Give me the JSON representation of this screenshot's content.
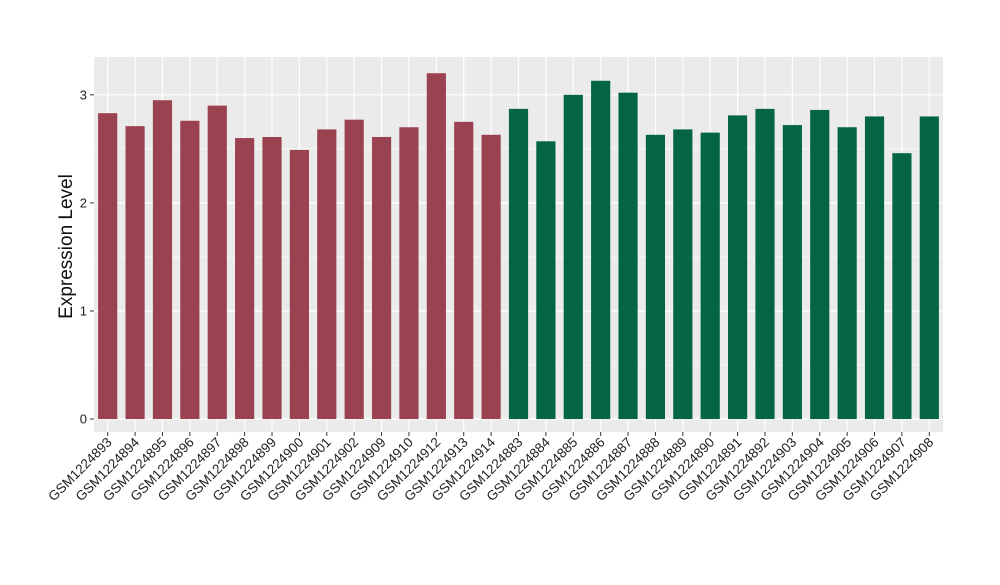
{
  "chart_data": {
    "type": "bar",
    "title": "",
    "xlabel": "",
    "ylabel": "Expression Level",
    "ylim": [
      -0.12,
      3.35
    ],
    "yticks": [
      0,
      1,
      2,
      3
    ],
    "grid": true,
    "legend": "none",
    "categories": [
      "GSM1224893",
      "GSM1224894",
      "GSM1224895",
      "GSM1224896",
      "GSM1224897",
      "GSM1224898",
      "GSM1224899",
      "GSM1224900",
      "GSM1224901",
      "GSM1224902",
      "GSM1224909",
      "GSM1224910",
      "GSM1224912",
      "GSM1224913",
      "GSM1224914",
      "GSM1224883",
      "GSM1224884",
      "GSM1224885",
      "GSM1224886",
      "GSM1224887",
      "GSM1224888",
      "GSM1224889",
      "GSM1224890",
      "GSM1224891",
      "GSM1224892",
      "GSM1224903",
      "GSM1224904",
      "GSM1224905",
      "GSM1224906",
      "GSM1224907",
      "GSM1224908"
    ],
    "values": [
      2.83,
      2.71,
      2.95,
      2.76,
      2.9,
      2.6,
      2.61,
      2.49,
      2.68,
      2.77,
      2.61,
      2.7,
      3.2,
      2.75,
      2.63,
      2.87,
      2.57,
      3.0,
      3.13,
      3.02,
      2.63,
      2.68,
      2.65,
      2.81,
      2.87,
      2.72,
      2.86,
      2.7,
      2.8,
      2.46,
      2.8
    ],
    "bar_colors": [
      "#9a4250",
      "#9a4250",
      "#9a4250",
      "#9a4250",
      "#9a4250",
      "#9a4250",
      "#9a4250",
      "#9a4250",
      "#9a4250",
      "#9a4250",
      "#9a4250",
      "#9a4250",
      "#9a4250",
      "#9a4250",
      "#9a4250",
      "#036543",
      "#036543",
      "#036543",
      "#036543",
      "#036543",
      "#036543",
      "#036543",
      "#036543",
      "#036543",
      "#036543",
      "#036543",
      "#036543",
      "#036543",
      "#036543",
      "#036543",
      "#036543"
    ],
    "panel_color": "#ebebeb",
    "grid_color": "#ffffff"
  }
}
